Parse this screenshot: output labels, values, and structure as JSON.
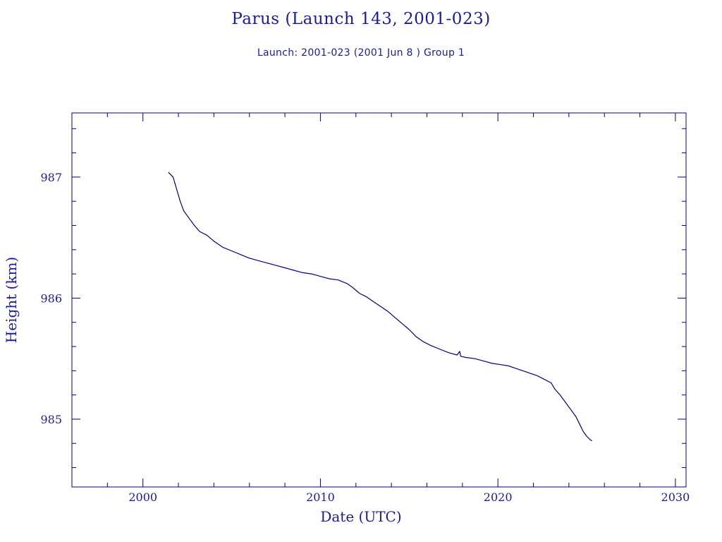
{
  "header": {
    "title": "Parus (Launch 143, 2001-023)",
    "subtitle": "Launch: 2001-023  (2001 Jun  8 )  Group 1"
  },
  "colors": {
    "axis": "#00008b",
    "series": "#00008b"
  },
  "chart_data": {
    "type": "line",
    "title": "Parus (Launch 143, 2001-023)",
    "subtitle": "Launch: 2001-023  (2001 Jun  8 )  Group 1",
    "xlabel": "Date (UTC)",
    "ylabel": "Height (km)",
    "xlim": [
      1996.0,
      2030.6
    ],
    "ylim": [
      984.44,
      987.53
    ],
    "xticks": [
      2000,
      2010,
      2020,
      2030
    ],
    "xtick_labels": [
      "2000",
      "2010",
      "2020",
      "2030"
    ],
    "yticks": [
      985,
      986,
      987
    ],
    "ytick_labels": [
      "985",
      "986",
      "987"
    ],
    "grid": false,
    "series": [
      {
        "x": [
          2001.44,
          2001.5,
          2001.7,
          2001.9,
          2002.1,
          2002.3,
          2002.6,
          2002.9,
          2003.2,
          2003.6,
          2004.0,
          2004.5,
          2005.0,
          2005.5,
          2006.0,
          2006.5,
          2007.0,
          2007.5,
          2008.0,
          2008.5,
          2009.0,
          2009.5,
          2010.0,
          2010.5,
          2011.0,
          2011.5,
          2011.8,
          2012.2,
          2012.6,
          2013.0,
          2013.4,
          2013.8,
          2014.2,
          2014.6,
          2015.0,
          2015.4,
          2015.8,
          2016.2,
          2016.7,
          2017.2,
          2017.7,
          2017.85,
          2017.9,
          2018.2,
          2018.7,
          2019.2,
          2019.7,
          2020.2,
          2020.6,
          2021.0,
          2021.4,
          2021.8,
          2022.2,
          2022.6,
          2023.0,
          2023.2,
          2023.5,
          2023.8,
          2024.1,
          2024.4,
          2024.6,
          2024.8,
          2025.0,
          2025.2,
          2025.3
        ],
        "y": [
          987.04,
          987.03,
          987.0,
          986.9,
          986.8,
          986.72,
          986.66,
          986.6,
          986.55,
          986.52,
          986.47,
          986.42,
          986.39,
          986.36,
          986.33,
          986.31,
          986.29,
          986.27,
          986.25,
          986.23,
          986.21,
          986.2,
          986.18,
          986.16,
          986.15,
          986.12,
          986.09,
          986.04,
          986.01,
          985.97,
          985.93,
          985.89,
          985.84,
          985.79,
          985.74,
          985.68,
          985.64,
          985.61,
          985.58,
          985.55,
          985.53,
          985.56,
          985.52,
          985.51,
          985.5,
          985.48,
          985.46,
          985.45,
          985.44,
          985.42,
          985.4,
          985.38,
          985.36,
          985.33,
          985.3,
          985.25,
          985.2,
          985.14,
          985.08,
          985.02,
          984.96,
          984.9,
          984.86,
          984.83,
          984.82
        ]
      }
    ]
  }
}
